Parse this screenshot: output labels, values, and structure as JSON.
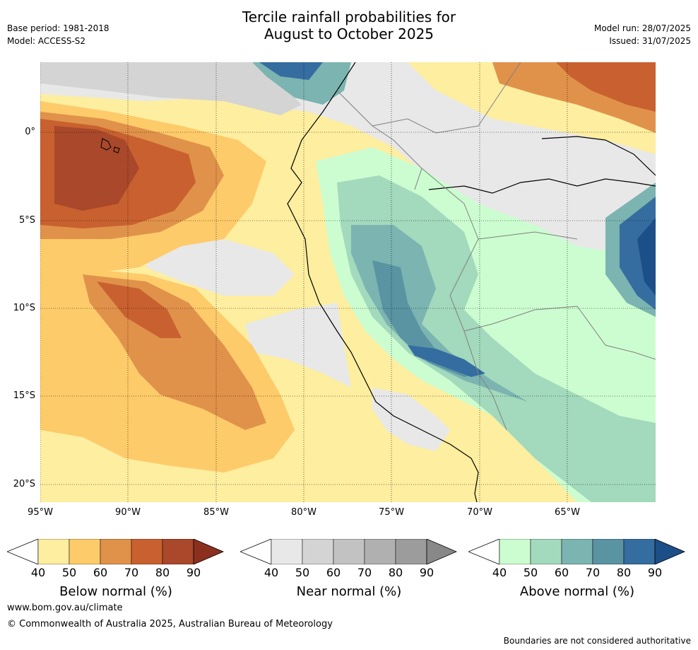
{
  "header": {
    "title_line1": "Tercile rainfall probabilities for",
    "title_line2": "August to October 2025",
    "base_period": "Base period: 1981-2018",
    "model": "Model: ACCESS-S2",
    "model_run": "Model run: 28/07/2025",
    "issued": "Issued: 31/07/2025"
  },
  "map": {
    "lat_labels": [
      "0°",
      "5°S",
      "10°S",
      "15°S",
      "20°S"
    ],
    "lon_labels": [
      "95°W",
      "90°W",
      "85°W",
      "80°W",
      "75°W",
      "70°W",
      "65°W"
    ],
    "colors": {
      "below": [
        "#fdeea0",
        "#fdcb6a",
        "#e0924a",
        "#c8612f",
        "#a9482a",
        "#8b2f1f"
      ],
      "near": [
        "#e8e8e8",
        "#d4d4d4",
        "#c2c2c2",
        "#b0b0b0",
        "#9c9c9c",
        "#888888"
      ],
      "above": [
        "#ccfdd0",
        "#a3d9bc",
        "#7bb4b0",
        "#5a93a2",
        "#356da0",
        "#1c4e88"
      ],
      "coast": "#000000",
      "border": "#808080"
    }
  },
  "colorbars": [
    {
      "name": "below",
      "label": "Below normal (%)",
      "ticks": [
        "40",
        "50",
        "60",
        "70",
        "80",
        "90"
      ]
    },
    {
      "name": "near",
      "label": "Near normal (%)",
      "ticks": [
        "40",
        "50",
        "60",
        "70",
        "80",
        "90"
      ]
    },
    {
      "name": "above",
      "label": "Above normal (%)",
      "ticks": [
        "40",
        "50",
        "60",
        "70",
        "80",
        "90"
      ]
    }
  ],
  "footer": {
    "url": "www.bom.gov.au/climate",
    "copyright": "© Commonwealth of Australia 2025, Australian Bureau of Meteorology",
    "disclaimer": "Boundaries are not considered authoritative"
  }
}
